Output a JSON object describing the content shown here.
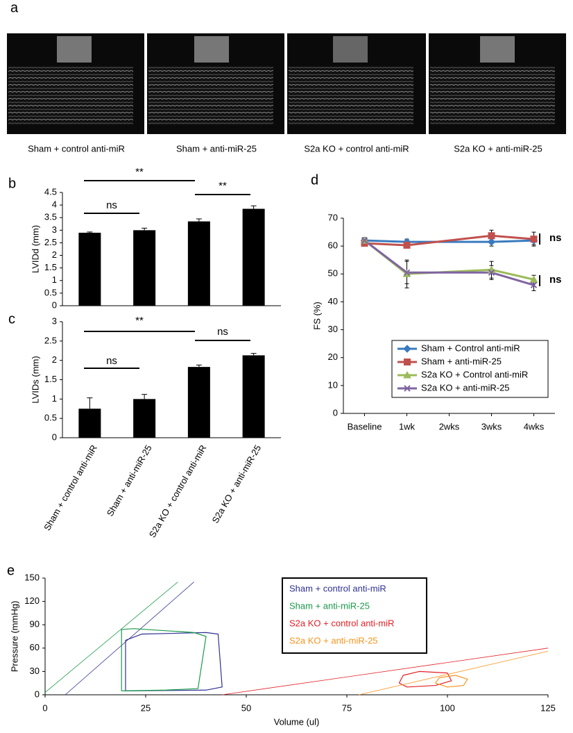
{
  "panel_labels": [
    "a",
    "b",
    "c",
    "d",
    "e"
  ],
  "images": {
    "captions": [
      "Sham + control anti-miR",
      "Sham + anti-miR-25",
      "S2a KO + control anti-miR",
      "S2a KO + anti-miR-25"
    ]
  },
  "chart_data": [
    {
      "type": "bar",
      "ylabel": "LVIDd (mm)",
      "categories": [
        null,
        null,
        null,
        null
      ],
      "values": [
        2.9,
        3.0,
        3.35,
        3.85
      ],
      "errors": [
        0.03,
        0.08,
        0.1,
        0.12
      ],
      "color": "#000000",
      "ylim": [
        0,
        4.5
      ],
      "yticks": [
        0,
        0.5,
        1,
        1.5,
        2,
        2.5,
        3,
        3.5,
        4,
        4.5
      ],
      "annotations": [
        "ns",
        "**",
        "**"
      ]
    },
    {
      "type": "bar",
      "ylabel": "LVIDs (mm)",
      "categories": [
        "Sham + control anti-miR",
        "Sham + anti-miR-25",
        "S2a KO + control anti-miR",
        "S2a KO + anti-miR-25"
      ],
      "values": [
        0.75,
        1.0,
        1.83,
        2.13
      ],
      "errors": [
        0.28,
        0.12,
        0.05,
        0.05
      ],
      "color": "#000000",
      "ylim": [
        0,
        3
      ],
      "yticks": [
        0,
        0.5,
        1,
        1.5,
        2,
        2.5,
        3
      ],
      "annotations": [
        "**",
        "ns",
        "ns"
      ]
    },
    {
      "type": "line",
      "ylabel": "FS (%)",
      "x": [
        0,
        1,
        3,
        4
      ],
      "xlim": [
        -0.5,
        4.5
      ],
      "xticks": [
        {
          "value": 0,
          "label": "Baseline"
        },
        {
          "value": 1,
          "label": "1wk"
        },
        {
          "value": 2,
          "label": "2wks"
        },
        {
          "value": 3,
          "label": "3wks"
        },
        {
          "value": 4,
          "label": "4wks"
        }
      ],
      "ylim": [
        0,
        70
      ],
      "yticks": [
        0,
        10,
        20,
        30,
        40,
        50,
        60,
        70
      ],
      "series": [
        {
          "name": "Sham + Control anti-miR",
          "color": "#3a7bbf",
          "marker": "diamond",
          "values": [
            62,
            61.5,
            61.5,
            62
          ],
          "errors": [
            1,
            1,
            1.5,
            1.5
          ]
        },
        {
          "name": "Sham + anti-miR-25",
          "color": "#c0504d",
          "marker": "square",
          "values": [
            61,
            60.3,
            63.7,
            62.5
          ],
          "errors": [
            1,
            1,
            2,
            2.5
          ]
        },
        {
          "name": "S2a KO + Control anti-miR",
          "color": "#9bbb59",
          "marker": "triangle",
          "values": [
            62,
            50,
            51.5,
            48
          ],
          "errors": [
            1,
            5,
            3,
            1.5
          ]
        },
        {
          "name": "S2a KO + anti-miR-25",
          "color": "#8064a2",
          "marker": "x",
          "values": [
            62,
            50.5,
            50.5,
            46
          ],
          "errors": [
            1,
            4,
            2.5,
            2
          ]
        }
      ],
      "legend": "lower right",
      "annotations": [
        "ns",
        "ns"
      ]
    },
    {
      "type": "loop",
      "xlabel": "Volume (ul)",
      "ylabel": "Pressure (mmHg)",
      "xlim": [
        0,
        125
      ],
      "xticks": [
        0,
        25,
        50,
        75,
        100,
        125
      ],
      "ylim": [
        0,
        150
      ],
      "yticks": [
        0,
        30,
        60,
        90,
        120,
        150
      ],
      "series": [
        {
          "name": "Sham + control anti-miR",
          "color": "#2e3192",
          "x": [
            20,
            20,
            24,
            40,
            43,
            44,
            40,
            20
          ],
          "values": [
            5,
            70,
            78,
            80,
            78,
            10,
            6,
            5
          ],
          "line_x": [
            5,
            37
          ],
          "line_values": [
            0,
            145
          ]
        },
        {
          "name": "Sham + anti-miR-25",
          "color": "#1a9a4a",
          "x": [
            19,
            19,
            22,
            37,
            40,
            38,
            30,
            19
          ],
          "values": [
            5,
            84,
            85,
            80,
            75,
            8,
            6,
            5
          ],
          "line_x": [
            0,
            33
          ],
          "line_values": [
            3,
            145
          ]
        },
        {
          "name": "S2a KO + control anti-miR",
          "color": "#e31e24",
          "x": [
            88,
            89,
            93,
            100,
            101,
            97,
            90,
            88
          ],
          "values": [
            15,
            25,
            30,
            28,
            18,
            12,
            10,
            15
          ],
          "line_x": [
            44,
            125
          ],
          "line_values": [
            0,
            60
          ]
        },
        {
          "name": "S2a KO + anti-miR-25",
          "color": "#f7941d",
          "x": [
            97,
            98,
            102,
            105,
            104,
            100,
            97
          ],
          "values": [
            15,
            22,
            25,
            20,
            12,
            10,
            15
          ],
          "line_x": [
            78,
            125
          ],
          "line_values": [
            0,
            56
          ]
        }
      ],
      "legend": "upper center"
    }
  ]
}
